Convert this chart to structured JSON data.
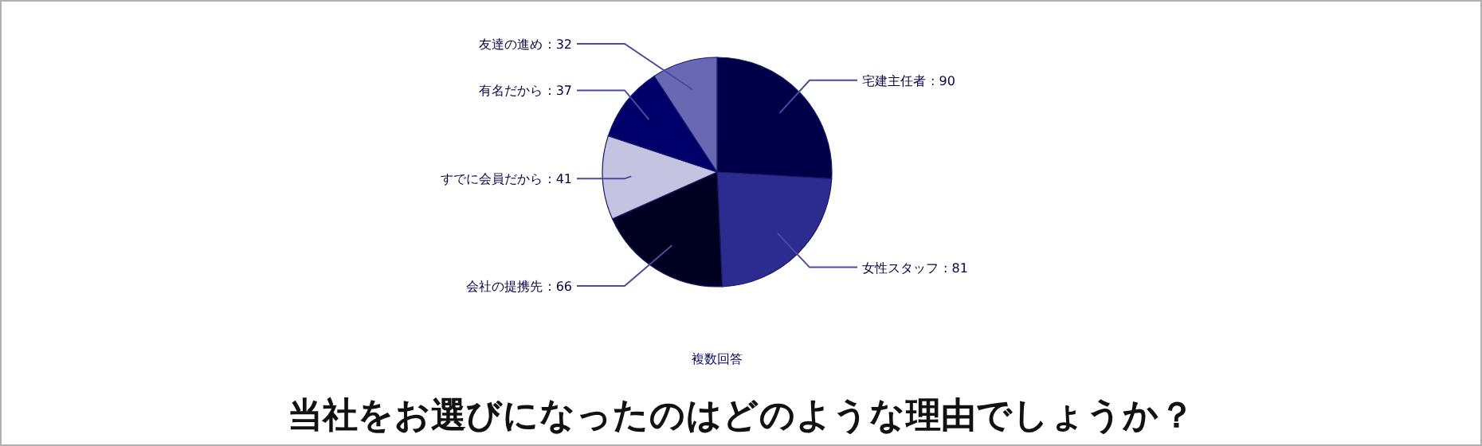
{
  "chart_data": {
    "type": "pie",
    "title": "当社をお選びになったのはどのような理由でしょうか？",
    "subtitle": "複数回答",
    "categories": [
      "宅建主任者",
      "女性スタッフ",
      "会社の提携先",
      "すでに会員だから",
      "有名だから",
      "友達の進め"
    ],
    "values": [
      90,
      81,
      66,
      41,
      37,
      32
    ],
    "colors": [
      "#000048",
      "#2c2c90",
      "#000020",
      "#c4c4e2",
      "#00006a",
      "#6868b4"
    ],
    "value_labels": [
      ": 90",
      ": 81",
      ": 66",
      ": 41",
      ": 37",
      ": 32"
    ]
  }
}
